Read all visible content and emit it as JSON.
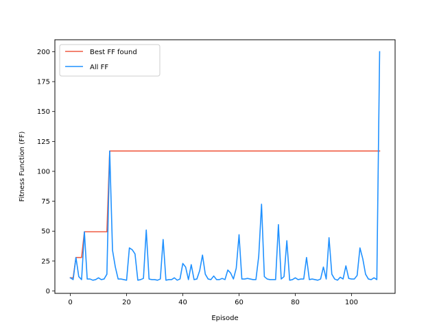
{
  "chart_data": {
    "type": "line",
    "title": "",
    "xlabel": "Episode",
    "ylabel": "Fitness Function (FF)",
    "xlim": [
      -5.5,
      115.5
    ],
    "ylim": [
      -2,
      210
    ],
    "xticks": [
      0,
      20,
      40,
      60,
      80,
      100
    ],
    "yticks": [
      0,
      25,
      50,
      75,
      100,
      125,
      150,
      175,
      200
    ],
    "grid": false,
    "legend_position": "top-left",
    "series": [
      {
        "name": "Best FF found",
        "color": "#ef5a41",
        "x": [
          0,
          1,
          2,
          3,
          4,
          5,
          6,
          7,
          8,
          9,
          10,
          11,
          12,
          13,
          14,
          15,
          16,
          17,
          18,
          19,
          20,
          21,
          22,
          23,
          24,
          25,
          26,
          27,
          28,
          29,
          30,
          31,
          32,
          33,
          34,
          35,
          36,
          37,
          38,
          39,
          40,
          41,
          42,
          43,
          44,
          45,
          46,
          47,
          48,
          49,
          50,
          51,
          52,
          53,
          54,
          55,
          56,
          57,
          58,
          59,
          60,
          61,
          62,
          63,
          64,
          65,
          66,
          67,
          68,
          69,
          70,
          71,
          72,
          73,
          74,
          75,
          76,
          77,
          78,
          79,
          80,
          81,
          82,
          83,
          84,
          85,
          86,
          87,
          88,
          89,
          90,
          91,
          92,
          93,
          94,
          95,
          96,
          97,
          98,
          99,
          100,
          101,
          102,
          103,
          104,
          105,
          106,
          107,
          108,
          109,
          110
        ],
        "y": [
          11,
          11,
          28,
          28,
          28,
          49.5,
          49.5,
          49.5,
          49.5,
          49.5,
          49.5,
          49.5,
          49.5,
          49.5,
          117,
          117,
          117,
          117,
          117,
          117,
          117,
          117,
          117,
          117,
          117,
          117,
          117,
          117,
          117,
          117,
          117,
          117,
          117,
          117,
          117,
          117,
          117,
          117,
          117,
          117,
          117,
          117,
          117,
          117,
          117,
          117,
          117,
          117,
          117,
          117,
          117,
          117,
          117,
          117,
          117,
          117,
          117,
          117,
          117,
          117,
          117,
          117,
          117,
          117,
          117,
          117,
          117,
          117,
          117,
          117,
          117,
          117,
          117,
          117,
          117,
          117,
          117,
          117,
          117,
          117,
          117,
          117,
          117,
          117,
          117,
          117,
          117,
          117,
          117,
          117,
          117,
          117,
          117,
          117,
          117,
          117,
          117,
          117,
          117,
          117,
          117,
          117,
          117,
          117,
          117,
          117,
          117,
          117,
          117,
          117,
          117
        ]
      },
      {
        "name": "All FF",
        "color": "#1e90ff",
        "x": [
          0,
          1,
          2,
          3,
          4,
          5,
          6,
          7,
          8,
          9,
          10,
          11,
          12,
          13,
          14,
          15,
          16,
          17,
          18,
          19,
          20,
          21,
          22,
          23,
          24,
          25,
          26,
          27,
          28,
          29,
          30,
          31,
          32,
          33,
          34,
          35,
          36,
          37,
          38,
          39,
          40,
          41,
          42,
          43,
          44,
          45,
          46,
          47,
          48,
          49,
          50,
          51,
          52,
          53,
          54,
          55,
          56,
          57,
          58,
          59,
          60,
          61,
          62,
          63,
          64,
          65,
          66,
          67,
          68,
          69,
          70,
          71,
          72,
          73,
          74,
          75,
          76,
          77,
          78,
          79,
          80,
          81,
          82,
          83,
          84,
          85,
          86,
          87,
          88,
          89,
          90,
          91,
          92,
          93,
          94,
          95,
          96,
          97,
          98,
          99,
          100,
          101,
          102,
          103,
          104,
          105,
          106,
          107,
          108,
          109,
          110
        ],
        "y": [
          11,
          9.5,
          28,
          12,
          9.5,
          49.5,
          10,
          10,
          9,
          9.5,
          11,
          9.5,
          10,
          14,
          117,
          34,
          20,
          10,
          10,
          9.5,
          9,
          36,
          34.5,
          31,
          9,
          9.5,
          10.5,
          51,
          10,
          9.5,
          9.5,
          9,
          10,
          43,
          9,
          9.5,
          9.5,
          11,
          9,
          10,
          23,
          20,
          9.5,
          22,
          9.5,
          10,
          17,
          30,
          14,
          10,
          9.5,
          12.5,
          9.5,
          9.5,
          10.5,
          9.5,
          17.5,
          15,
          10,
          19,
          47,
          10,
          10,
          10.5,
          10,
          9.5,
          9.5,
          29,
          72.5,
          12,
          10,
          9.5,
          9.5,
          9.5,
          55.5,
          10,
          12,
          42,
          9,
          9.5,
          11,
          9.5,
          10,
          10,
          28,
          9.5,
          10,
          9.5,
          9,
          10,
          20,
          10,
          44.5,
          14,
          10,
          9,
          11.5,
          10,
          21,
          10.5,
          10,
          10,
          13,
          36,
          27,
          14,
          10,
          9.5,
          11,
          9.5,
          200
        ]
      }
    ]
  }
}
